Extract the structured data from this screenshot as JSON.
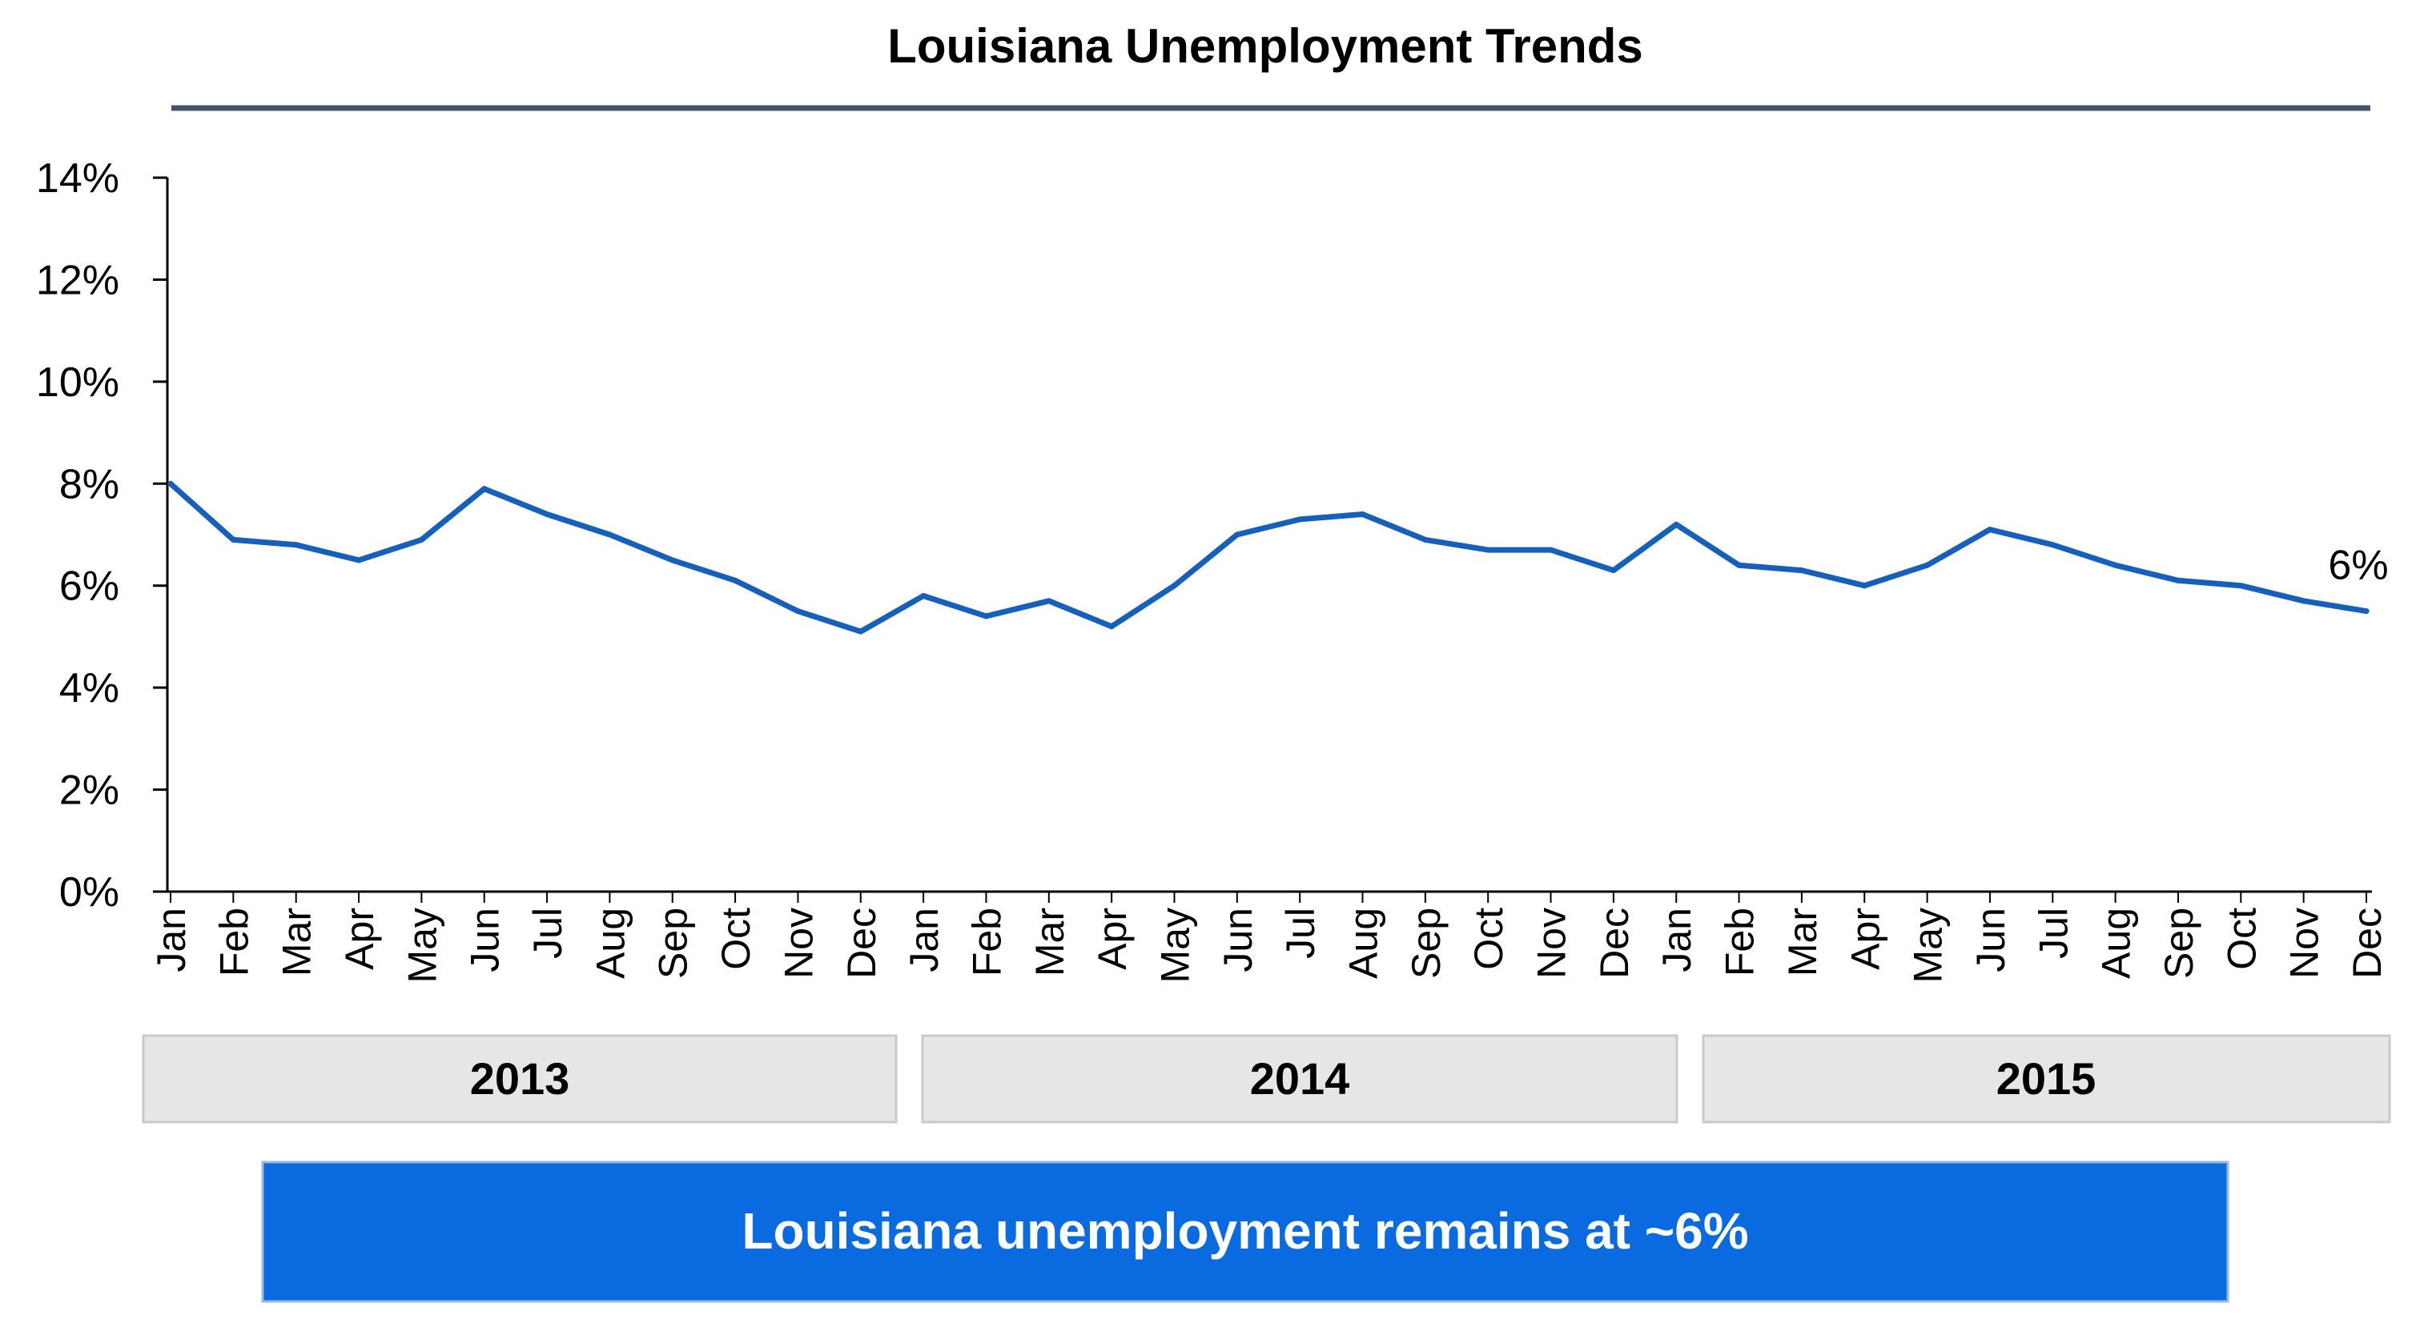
{
  "chart_data": {
    "type": "line",
    "title": "Louisiana Unemployment Trends",
    "xlabel": "",
    "ylabel": "",
    "ylim": [
      0,
      14
    ],
    "y_ticks": [
      "0%",
      "2%",
      "4%",
      "6%",
      "8%",
      "10%",
      "12%",
      "14%"
    ],
    "grid": false,
    "legend": "none",
    "categories": [
      "Jan",
      "Feb",
      "Mar",
      "Apr",
      "May",
      "Jun",
      "Jul",
      "Aug",
      "Sep",
      "Oct",
      "Nov",
      "Dec",
      "Jan",
      "Feb",
      "Mar",
      "Apr",
      "May",
      "Jun",
      "Jul",
      "Aug",
      "Sep",
      "Oct",
      "Nov",
      "Dec",
      "Jan",
      "Feb",
      "Mar",
      "Apr",
      "May",
      "Jun",
      "Jul",
      "Aug",
      "Sep",
      "Oct",
      "Nov",
      "Dec"
    ],
    "series": [
      {
        "values": [
          8.0,
          6.9,
          6.8,
          6.5,
          6.9,
          7.9,
          7.4,
          7.0,
          6.5,
          6.1,
          5.5,
          5.1,
          5.8,
          5.4,
          5.7,
          5.2,
          6.0,
          7.0,
          7.3,
          7.4,
          6.9,
          6.7,
          6.7,
          6.3,
          7.2,
          6.4,
          6.3,
          6.0,
          6.4,
          7.1,
          6.8,
          6.4,
          6.1,
          6.0,
          5.7,
          5.5
        ],
        "color": "#1560bd"
      }
    ],
    "end_label": "6%",
    "years": [
      "2013",
      "2014",
      "2015"
    ]
  },
  "callout": "Louisiana unemployment remains at ~6%",
  "colors": {
    "line": "#1560bd",
    "title_rule": "#44546a",
    "year_box_fill": "#e7e6e6",
    "year_box_border": "#c9c9c9",
    "callout_fill": "#0a6ae0",
    "callout_border": "#9ab8e0"
  }
}
